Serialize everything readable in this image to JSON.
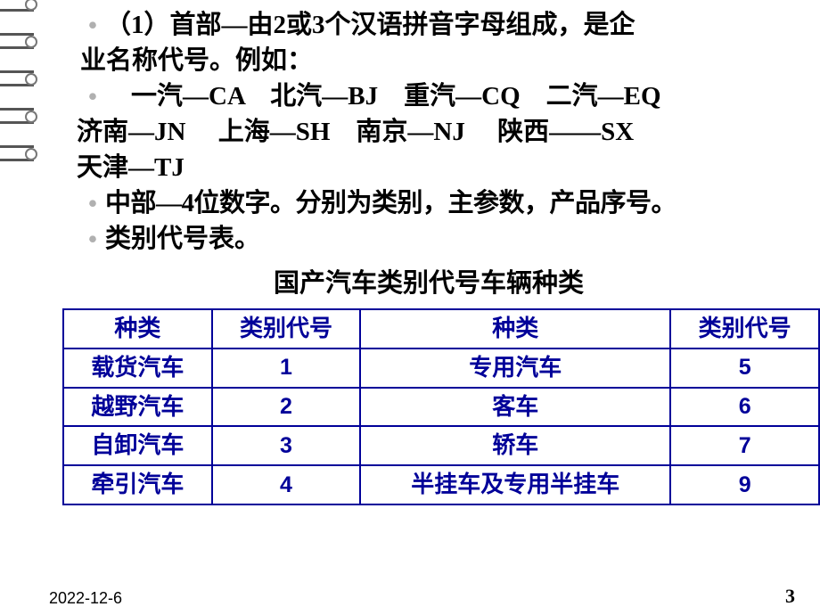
{
  "bullets": {
    "b1_l1": "（1）首部—由2或3个汉语拼音字母组成，是企",
    "b1_l2": "业名称代号。例如：",
    "b2_l1": "　一汽—CA　北汽—BJ　重汽—CQ　二汽—EQ",
    "b2_l2": "济南—JN　 上海—SH　南京—NJ　 陕西——SX",
    "b2_l3": "天津—TJ",
    "b3": "中部—4位数字。分别为类别，主参数，产品序号。",
    "b4": "类别代号表。"
  },
  "table_title": "国产汽车类别代号车辆种类",
  "table": {
    "headers": [
      "种类",
      "类别代号",
      "种类",
      "类别代号"
    ],
    "rows": [
      [
        "载货汽车",
        "1",
        "专用汽车",
        "5"
      ],
      [
        "越野汽车",
        "2",
        "客车",
        "6"
      ],
      [
        "自卸汽车",
        "3",
        "轿车",
        "7"
      ],
      [
        "牵引汽车",
        "4",
        "半挂车及专用半挂车",
        "9"
      ]
    ],
    "col_widths": [
      "158px",
      "158px",
      "330px",
      "158px"
    ],
    "border_color": "#000099",
    "text_color": "#000099"
  },
  "footer": {
    "date": "2022-12-6",
    "page": "3"
  },
  "spiral_count": 5
}
